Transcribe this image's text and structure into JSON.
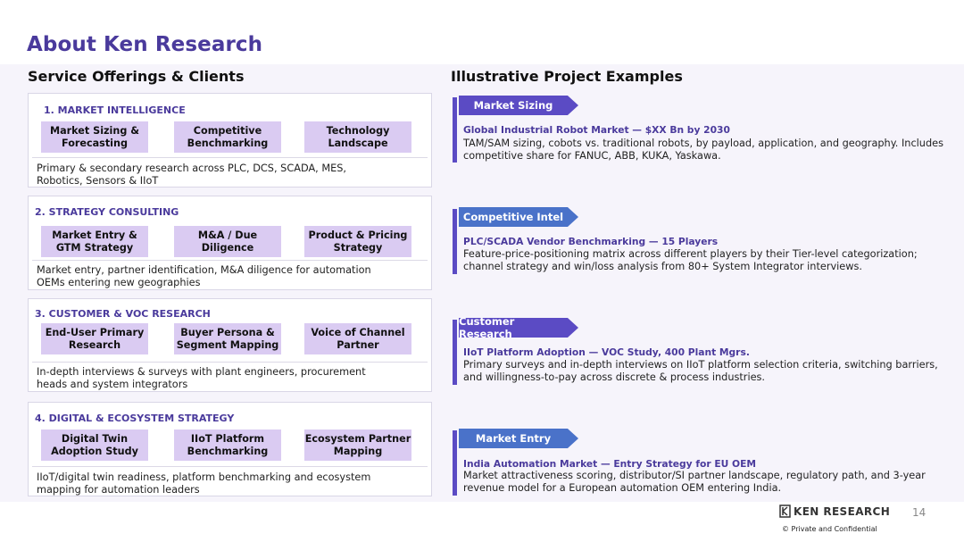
{
  "page": {
    "title": "About Ken Research",
    "page_number": "14",
    "confidential": "© Private and Confidential",
    "logo_text": "KEN RESEARCH"
  },
  "left": {
    "heading": "Service Offerings & Clients",
    "cards": [
      {
        "title": "1. MARKET INTELLIGENCE",
        "pills": [
          "Market Sizing &\nForecasting",
          "Competitive\nBenchmarking",
          "Technology\nLandscape"
        ],
        "description": "Primary & secondary research across PLC, DCS, SCADA, MES,\nRobotics, Sensors & IIoT"
      },
      {
        "title": "2. STRATEGY CONSULTING",
        "pills": [
          "Market Entry &\nGTM Strategy",
          "M&A / Due\nDiligence",
          "Product & Pricing\nStrategy"
        ],
        "description": "Market entry, partner identification, M&A diligence for automation\nOEMs entering new geographies"
      },
      {
        "title": "3. CUSTOMER & VOC RESEARCH",
        "pills": [
          "End-User Primary\nResearch",
          "Buyer Persona &\nSegment Mapping",
          "Voice of Channel\nPartner"
        ],
        "description": "In-depth interviews & surveys with plant engineers, procurement\nheads and system integrators"
      },
      {
        "title": "4. DIGITAL & ECOSYSTEM STRATEGY",
        "pills": [
          "Digital Twin\nAdoption Study",
          "IIoT Platform\nBenchmarking",
          "Ecosystem Partner\nMapping"
        ],
        "description": "IIoT/digital twin readiness, platform benchmarking and ecosystem\nmapping for automation leaders"
      }
    ]
  },
  "right": {
    "heading": "Illustrative Project Examples",
    "projects": [
      {
        "tag": "Market Sizing",
        "headline": "Global Industrial Robot Market — $XX Bn by 2030",
        "body": "TAM/SAM sizing, cobots vs. traditional robots, by payload, application, and geography. Includes competitive share for FANUC, ABB, KUKA, Yaskawa."
      },
      {
        "tag": "Competitive Intel",
        "headline": "PLC/SCADA Vendor Benchmarking — 15 Players",
        "body": "Feature-price-positioning matrix across different players by their Tier-level categorization; channel strategy and win/loss analysis from 80+ System Integrator interviews."
      },
      {
        "tag": "Customer Research",
        "headline": "IIoT Platform Adoption — VOC Study, 400 Plant Mgrs.",
        "body": "Primary surveys and in-depth interviews on IIoT platform selection criteria, switching barriers, and willingness-to-pay across discrete & process industries."
      },
      {
        "tag": "Market Entry",
        "headline": "India Automation Market — Entry Strategy for EU OEM",
        "body": "Market attractiveness scoring, distributor/SI partner landscape, regulatory path, and 3-year revenue model for a European automation OEM entering India."
      }
    ]
  },
  "colors": {
    "title_purple": "#4a3a9c",
    "pill_lavender": "#dacbf2",
    "tag_purple": "#5b4bc4",
    "tag_blue": "#4a72c9",
    "band": "#f6f4fb"
  }
}
